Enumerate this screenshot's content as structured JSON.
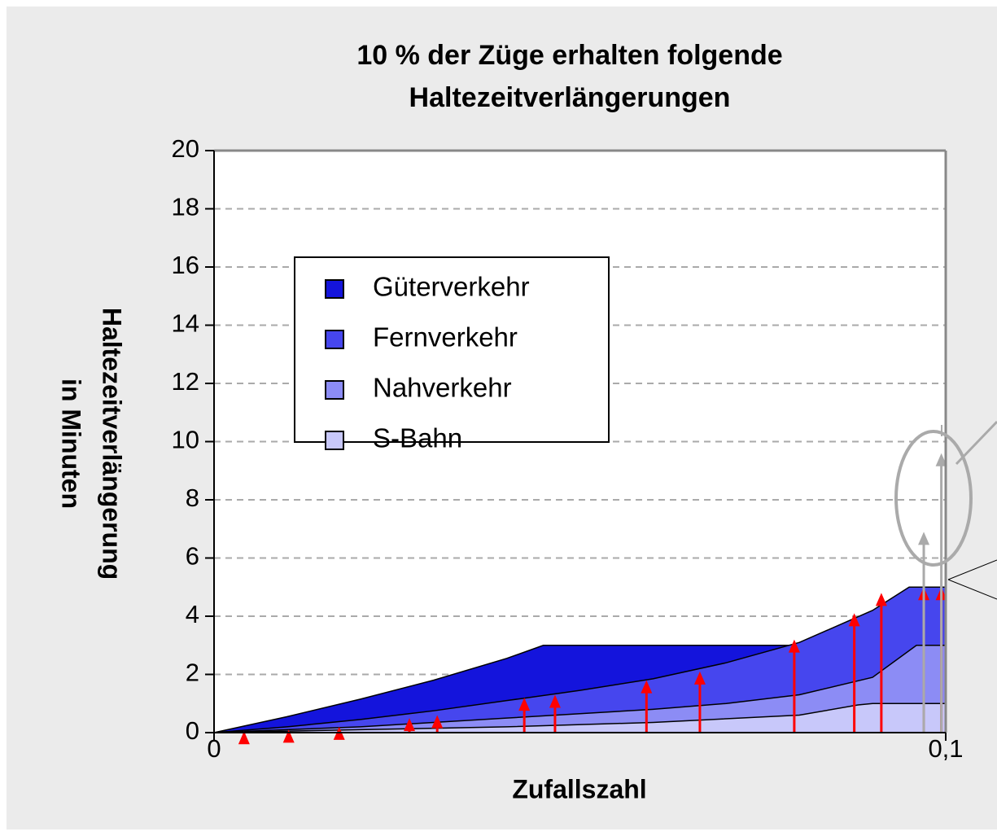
{
  "chart_data": {
    "type": "area",
    "title": [
      "10 % der Züge erhalten folgende",
      "Haltezeitverlängerungen"
    ],
    "xlabel": "Zufallszahl",
    "ylabel": [
      "Haltezeitverlängerung",
      "in Minuten"
    ],
    "xlim": [
      0,
      0.1
    ],
    "ylim": [
      0,
      20
    ],
    "xticks": [
      {
        "value": 0,
        "label": "0"
      },
      {
        "value": 0.1,
        "label": "0,1"
      }
    ],
    "yticks": [
      0,
      2,
      4,
      6,
      8,
      10,
      12,
      14,
      16,
      18,
      20
    ],
    "grid": true,
    "series": [
      {
        "name": "Güterverkehr",
        "color": "#1414dc",
        "x": [
          0,
          0.01,
          0.02,
          0.03,
          0.04,
          0.045,
          0.1
        ],
        "values": [
          0,
          0.55,
          1.15,
          1.8,
          2.55,
          3,
          3
        ]
      },
      {
        "name": "Fernverkehr",
        "color": "#4646ee",
        "x": [
          0,
          0.01,
          0.02,
          0.03,
          0.04,
          0.05,
          0.06,
          0.07,
          0.08,
          0.09,
          0.095,
          0.1
        ],
        "values": [
          0,
          0.2,
          0.45,
          0.75,
          1.1,
          1.45,
          1.85,
          2.4,
          3.1,
          4.2,
          5,
          5
        ]
      },
      {
        "name": "Nahverkehr",
        "color": "#8c8cf5",
        "x": [
          0,
          0.01,
          0.02,
          0.03,
          0.04,
          0.05,
          0.06,
          0.07,
          0.08,
          0.09,
          0.096,
          0.1
        ],
        "values": [
          0,
          0.1,
          0.2,
          0.35,
          0.5,
          0.65,
          0.8,
          1.0,
          1.3,
          1.9,
          3,
          3
        ]
      },
      {
        "name": "S-Bahn",
        "color": "#c8c8fa",
        "x": [
          0,
          0.02,
          0.04,
          0.06,
          0.08,
          0.088,
          0.09,
          0.1
        ],
        "values": [
          0,
          0.1,
          0.2,
          0.35,
          0.6,
          0.95,
          1,
          1
        ]
      }
    ],
    "arrows": {
      "color": "#ff0000",
      "x": [
        0.0041,
        0.0102,
        0.0171,
        0.0267,
        0.0305,
        0.0424,
        0.0466,
        0.0591,
        0.0664,
        0.0793,
        0.0875,
        0.0912,
        0.097,
        0.0994
      ],
      "values": [
        0.05,
        0.1,
        0.2,
        0.5,
        0.6,
        1.2,
        1.3,
        1.8,
        2.1,
        3.2,
        4.1,
        4.8,
        5,
        5
      ]
    },
    "gray_arrows": {
      "color": "#aaaaaa",
      "x": [
        0.097,
        0.0994
      ],
      "values": [
        6.9,
        9.6
      ]
    },
    "legend": "upper left"
  }
}
